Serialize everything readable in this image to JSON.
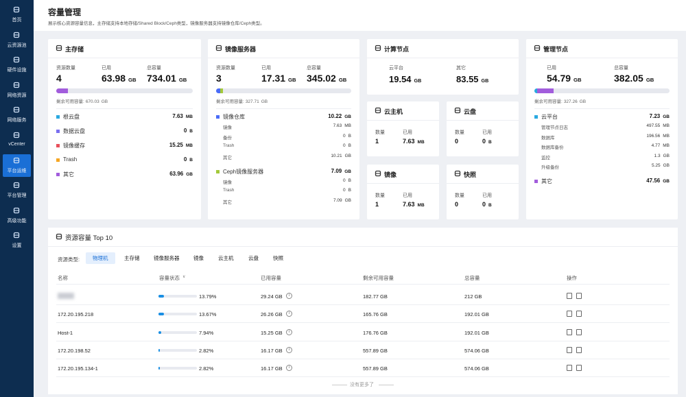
{
  "sidebar": {
    "items": [
      {
        "label": "首页"
      },
      {
        "label": "云资源池"
      },
      {
        "label": "硬件设施"
      },
      {
        "label": "网络资源"
      },
      {
        "label": "网络服务"
      },
      {
        "label": "vCenter"
      },
      {
        "label": "平台运维",
        "active": true
      },
      {
        "label": "平台管理"
      },
      {
        "label": "高级功能"
      },
      {
        "label": "设置"
      }
    ]
  },
  "header": {
    "title": "容量管理",
    "description": "展示核心资源容量信息，主存储支持本地存储/Shared Block/Ceph类型，镜像服务器支持镜像仓库/Ceph类型。"
  },
  "primary_storage": {
    "title": "主存储",
    "stats": [
      {
        "label": "资源数量",
        "value": 4
      },
      {
        "label": "已用",
        "value": 63.98,
        "unit": "GB"
      },
      {
        "label": "总容量",
        "value": 734.01,
        "unit": "GB"
      }
    ],
    "remaining": {
      "label": "剩余可用容量:",
      "value": 670.03,
      "unit": "GB"
    },
    "items": [
      {
        "name": "根云盘",
        "color": "#2aa9e0",
        "value": 7.63,
        "unit": "MB"
      },
      {
        "name": "数据云盘",
        "color": "#7a6ff0",
        "value": 0,
        "unit": "B"
      },
      {
        "name": "镜像缓存",
        "color": "#e8505b",
        "value": 15.25,
        "unit": "MB"
      },
      {
        "name": "Trash",
        "color": "#f5a623",
        "value": 0,
        "unit": "B"
      },
      {
        "name": "其它",
        "color": "#a25ddc",
        "value": 63.96,
        "unit": "GB"
      }
    ]
  },
  "image_server": {
    "title": "镜像服务器",
    "stats": [
      {
        "label": "资源数量",
        "value": 3
      },
      {
        "label": "已用",
        "value": 17.31,
        "unit": "GB"
      },
      {
        "label": "总容量",
        "value": 345.02,
        "unit": "GB"
      }
    ],
    "remaining": {
      "label": "剩余可用容量:",
      "value": 327.71,
      "unit": "GB"
    },
    "items": [
      {
        "name": "镜像仓库",
        "color": "#4a6cf7",
        "value": 10.22,
        "unit": "GB",
        "subs": [
          {
            "name": "镜像",
            "value": 7.63,
            "unit": "MB"
          },
          {
            "name": "备份",
            "value": 0,
            "unit": "B"
          },
          {
            "name": "Trash",
            "value": 0,
            "unit": "B"
          },
          {
            "name": "其它",
            "value": 10.21,
            "unit": "GB"
          }
        ]
      },
      {
        "name": "Ceph镜像服务器",
        "color": "#a3c93a",
        "value": 7.09,
        "unit": "GB",
        "subs": [
          {
            "name": "镜像",
            "value": 0,
            "unit": "B"
          },
          {
            "name": "Trash",
            "value": 0,
            "unit": "B"
          },
          {
            "name": "其它",
            "value": 7.09,
            "unit": "GB"
          }
        ]
      }
    ]
  },
  "compute_node": {
    "title": "计算节点",
    "stats": [
      {
        "label": "云平台",
        "value": 19.54,
        "unit": "GB"
      },
      {
        "label": "其它",
        "value": 83.55,
        "unit": "GB"
      }
    ]
  },
  "small_cards": [
    {
      "title": "云主机",
      "stats": [
        {
          "label": "数量",
          "value": 1
        },
        {
          "label": "已用",
          "value": 7.63,
          "unit": "MB"
        }
      ]
    },
    {
      "title": "云盘",
      "stats": [
        {
          "label": "数量",
          "value": 0
        },
        {
          "label": "已用",
          "value": 0,
          "unit": "B"
        }
      ]
    },
    {
      "title": "镜像",
      "stats": [
        {
          "label": "数量",
          "value": 1
        },
        {
          "label": "已用",
          "value": 7.63,
          "unit": "MB"
        }
      ]
    },
    {
      "title": "快照",
      "stats": [
        {
          "label": "数量",
          "value": 0
        },
        {
          "label": "已用",
          "value": 0,
          "unit": "B"
        }
      ]
    }
  ],
  "management_node": {
    "title": "管理节点",
    "stats": [
      {
        "label": "已用",
        "value": 54.79,
        "unit": "GB"
      },
      {
        "label": "总容量",
        "value": 382.05,
        "unit": "GB"
      }
    ],
    "remaining": {
      "label": "剩余可用容量:",
      "value": 327.26,
      "unit": "GB"
    },
    "items": [
      {
        "name": "云平台",
        "color": "#2aa9e0",
        "value": 7.23,
        "unit": "GB",
        "subs": [
          {
            "name": "管理节点日志",
            "value": 497.55,
            "unit": "MB"
          },
          {
            "name": "数据库",
            "value": 196.56,
            "unit": "MB"
          },
          {
            "name": "数据库备份",
            "value": 4.77,
            "unit": "MB"
          },
          {
            "name": "监控",
            "value": 1.3,
            "unit": "GB"
          },
          {
            "name": "升级备份",
            "value": 5.25,
            "unit": "GB"
          }
        ]
      },
      {
        "name": "其它",
        "color": "#a25ddc",
        "value": 47.56,
        "unit": "GB"
      }
    ]
  },
  "top10": {
    "title": "资源容量 Top 10",
    "filter_label": "资源类型:",
    "tabs": [
      "物理机",
      "主存储",
      "镜像服务器",
      "镜像",
      "云主机",
      "云盘",
      "快照"
    ],
    "active_tab": 0,
    "columns": [
      "名称",
      "容量状态",
      "已用容量",
      "剩余可用容量",
      "总容量",
      "操作"
    ],
    "rows": [
      {
        "name": null,
        "percent": {
          "value": 13.79,
          "label": "13.79%"
        },
        "used": "29.24 GB",
        "remaining": "182.77 GB",
        "total": "212 GB"
      },
      {
        "name": "172.20.195.218",
        "percent": {
          "value": 13.67,
          "label": "13.67%"
        },
        "used": "26.26 GB",
        "remaining": "165.76 GB",
        "total": "192.01 GB"
      },
      {
        "name": "Host-1",
        "percent": {
          "value": 7.94,
          "label": "7.94%"
        },
        "used": "15.25 GB",
        "remaining": "176.76 GB",
        "total": "192.01 GB"
      },
      {
        "name": "172.20.198.52",
        "percent": {
          "value": 2.82,
          "label": "2.82%"
        },
        "used": "16.17 GB",
        "remaining": "557.89 GB",
        "total": "574.06 GB"
      },
      {
        "name": "172.20.195.134-1",
        "percent": {
          "value": 2.82,
          "label": "2.82%"
        },
        "used": "16.17 GB",
        "remaining": "557.89 GB",
        "total": "574.06 GB"
      }
    ],
    "footer": "没有更多了"
  }
}
